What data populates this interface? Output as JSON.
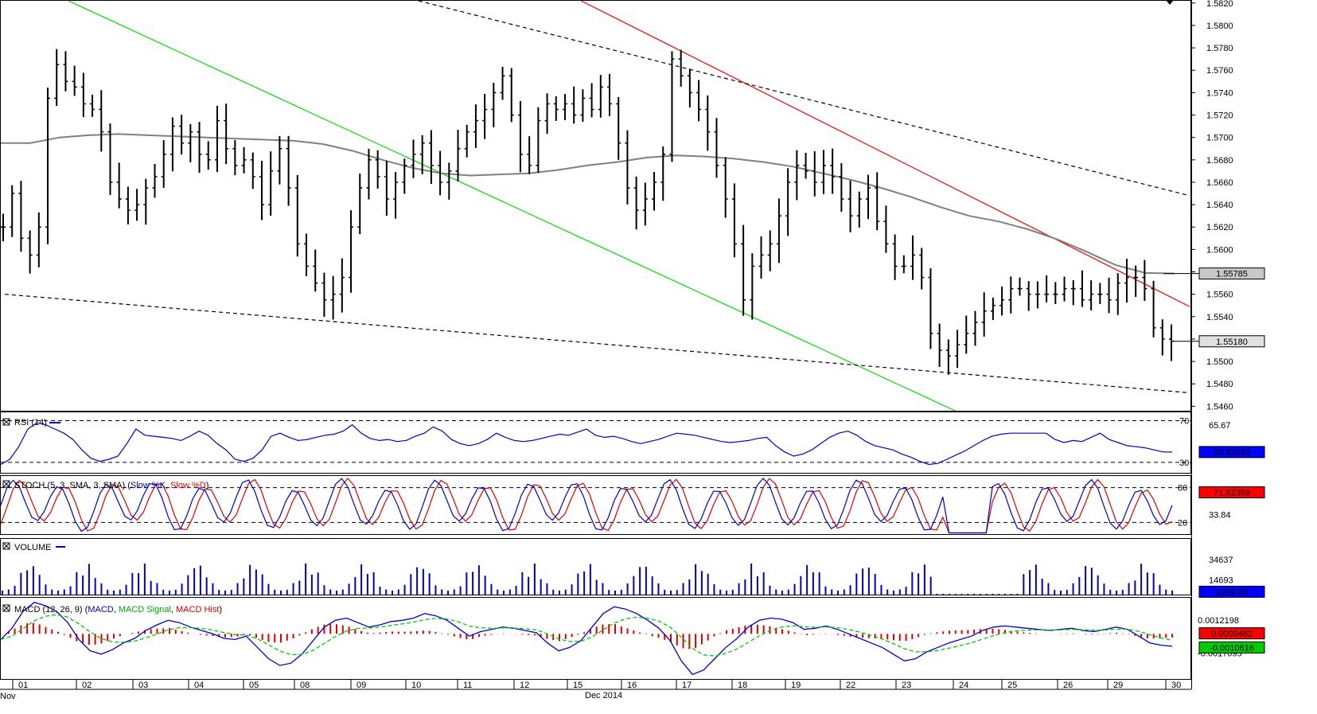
{
  "chart_data": {
    "type": "ohlc",
    "x_dates": {
      "month_labels": [
        "Nov",
        "Dec 2014"
      ],
      "day_labels": [
        "01",
        "02",
        "03",
        "04",
        "05",
        "08",
        "09",
        "10",
        "11",
        "12",
        "15",
        "16",
        "17",
        "18",
        "19",
        "22",
        "23",
        "24",
        "25",
        "26",
        "29",
        "30"
      ]
    },
    "main": {
      "y_ticks": [
        "1.5820",
        "1.5800",
        "1.5780",
        "1.5760",
        "1.5740",
        "1.5720",
        "1.5700",
        "1.5680",
        "1.5660",
        "1.5640",
        "1.5620",
        "1.5600",
        "1.5580",
        "1.5560",
        "1.5540",
        "1.5520",
        "1.5500",
        "1.5480",
        "1.5460"
      ],
      "ylim": [
        1.5456,
        1.5822
      ],
      "ma_label": "1.55785",
      "last_label": "1.55180",
      "ma_value": 1.55785,
      "last_value": 1.5518,
      "close_path": [
        1.562,
        1.565,
        1.561,
        1.5595,
        1.562,
        1.5735,
        1.5765,
        1.575,
        1.5745,
        1.573,
        1.5725,
        1.5705,
        1.566,
        1.5645,
        1.5635,
        1.564,
        1.5655,
        1.5665,
        1.5685,
        1.571,
        1.5695,
        1.5705,
        1.5685,
        1.568,
        1.5715,
        1.569,
        1.5675,
        1.568,
        1.5665,
        1.564,
        1.567,
        1.569,
        1.5655,
        1.5605,
        1.5585,
        1.557,
        1.5555,
        1.556,
        1.5575,
        1.562,
        1.5655,
        1.568,
        1.5665,
        1.5645,
        1.566,
        1.5675,
        1.5685,
        1.5695,
        1.5675,
        1.566,
        1.567,
        1.569,
        1.5705,
        1.5715,
        1.5725,
        1.574,
        1.5755,
        1.572,
        1.5685,
        1.5675,
        1.5715,
        1.573,
        1.5725,
        1.573,
        1.572,
        1.5735,
        1.5725,
        1.5745,
        1.573,
        1.5695,
        1.5655,
        1.5635,
        1.5645,
        1.566,
        1.5685,
        1.577,
        1.5755,
        1.574,
        1.5725,
        1.5705,
        1.5675,
        1.5645,
        1.5605,
        1.5555,
        1.5585,
        1.5595,
        1.5605,
        1.563,
        1.566,
        1.5675,
        1.567,
        1.566,
        1.5675,
        1.5665,
        1.5645,
        1.563,
        1.5645,
        1.5655,
        1.5625,
        1.5605,
        1.5585,
        1.5585,
        1.5595,
        1.5575,
        1.5525,
        1.551,
        1.5505,
        1.5515,
        1.5525,
        1.5535,
        1.5545,
        1.555,
        1.5555,
        1.5565,
        1.5565,
        1.556,
        1.556,
        1.556,
        1.556,
        1.5565,
        1.5565,
        1.5555,
        1.556,
        1.556,
        1.5555,
        1.557,
        1.5575,
        1.5575,
        1.5565,
        1.553,
        1.552,
        1.5518
      ],
      "ma_path": [
        1.5695,
        1.5695,
        1.57,
        1.5702,
        1.5703,
        1.5702,
        1.5701,
        1.57,
        1.5699,
        1.5698,
        1.5697,
        1.5694,
        1.5688,
        1.568,
        1.5673,
        1.5668,
        1.5666,
        1.5667,
        1.5668,
        1.5671,
        1.5675,
        1.5678,
        1.5682,
        1.5684,
        1.5683,
        1.5681,
        1.5678,
        1.5674,
        1.5668,
        1.5662,
        1.5655,
        1.5647,
        1.5638,
        1.563,
        1.5625,
        1.5618,
        1.5609,
        1.5598,
        1.5586,
        1.5579,
        1.55785
      ]
    },
    "trendlines": [
      {
        "color": "#00dd00",
        "from": [
          1,
          1.5822
        ],
        "to": [
          17.2,
          1.5456
        ]
      },
      {
        "color": "#ff0000",
        "from": [
          10.4,
          1.5822
        ],
        "to": [
          21.95,
          1.5549
        ]
      },
      {
        "color": "#000000",
        "dashed": true,
        "from": [
          7.4,
          1.5822
        ],
        "to": [
          21.95,
          1.5648
        ]
      },
      {
        "color": "#000000",
        "dashed": true,
        "from": [
          0,
          1.556
        ],
        "to": [
          21.95,
          1.5472
        ]
      }
    ],
    "rsi": {
      "label_name": "RSI (14)",
      "levels": [
        "70",
        "30"
      ],
      "level_values": [
        70,
        30
      ],
      "y_ticks": [
        "65.67"
      ],
      "current": "39.92039",
      "ylim": [
        20,
        78
      ],
      "values": [
        28,
        33,
        45,
        62,
        68,
        66,
        62,
        58,
        52,
        42,
        34,
        31,
        33,
        36,
        48,
        62,
        56,
        55,
        54,
        53,
        51,
        55,
        60,
        56,
        48,
        42,
        33,
        31,
        34,
        42,
        55,
        58,
        54,
        51,
        52,
        54,
        56,
        57,
        60,
        66,
        58,
        53,
        51,
        52,
        50,
        51,
        55,
        58,
        64,
        60,
        52,
        48,
        46,
        48,
        52,
        58,
        54,
        51,
        50,
        51,
        53,
        55,
        57,
        56,
        59,
        62,
        56,
        54,
        55,
        53,
        50,
        48,
        50,
        52,
        55,
        58,
        57,
        56,
        54,
        52,
        50,
        49,
        50,
        51,
        53,
        54,
        46,
        40,
        36,
        38,
        42,
        48,
        54,
        58,
        60,
        56,
        50,
        46,
        44,
        42,
        38,
        35,
        31,
        28,
        29,
        33,
        37,
        41,
        46,
        51,
        55,
        57,
        58,
        58,
        58,
        58,
        58,
        52,
        49,
        51,
        50,
        54,
        58,
        52,
        49,
        46,
        45,
        44,
        42,
        40,
        39.92
      ]
    },
    "stoch": {
      "label_name": "STOCH (5, 3, SMA, 3, SMA)",
      "series_names": [
        "Slow %K",
        "Slow %D"
      ],
      "levels": [
        "80",
        "20"
      ],
      "level_values": [
        80,
        20
      ],
      "y_ticks": [
        "33.84"
      ],
      "current": "71.92359",
      "ylim": [
        0,
        100
      ]
    },
    "volume": {
      "label_name": "VOLUME",
      "y_ticks": [
        "34637",
        "14693"
      ],
      "current": "1269.36",
      "ylim": [
        0,
        55000
      ]
    },
    "macd": {
      "label_name": "MACD (12, 26, 9)",
      "series_names": [
        "MACD",
        "MACD Signal",
        "MACD Hist"
      ],
      "y_ticks": [
        "0.0012198",
        "-0.0017095"
      ],
      "current_hist": "0.0000482",
      "current_signal": "-0.0010616",
      "ylim": [
        -0.004,
        0.0032
      ],
      "values": [
        -0.0005,
        0.0005,
        0.002,
        0.0028,
        0.0025,
        0.002,
        0.001,
        -0.0005,
        -0.0015,
        -0.0018,
        -0.0014,
        -0.0008,
        -0.0004,
        0.0003,
        0.0008,
        0.0012,
        0.001,
        0.0006,
        0.0003,
        0.0,
        -0.0004,
        -0.0005,
        -0.0002,
        -0.0012,
        -0.0022,
        -0.0028,
        -0.0026,
        -0.0018,
        -0.0006,
        0.0006,
        0.0012,
        0.0014,
        0.001,
        0.0006,
        0.0008,
        0.0011,
        0.0012,
        0.0014,
        0.0018,
        0.0016,
        0.0012,
        0.0005,
        -0.0002,
        0.0002,
        0.0004,
        0.0006,
        0.0005,
        0.0003,
        0.0001,
        -0.0008,
        -0.0015,
        -0.0012,
        -0.0006,
        0.0006,
        0.0018,
        0.0024,
        0.0022,
        0.0018,
        0.0012,
        0.0005,
        -0.0006,
        -0.0024,
        -0.0036,
        -0.0032,
        -0.0022,
        -0.0012,
        -0.0004,
        0.0006,
        0.0012,
        0.0014,
        0.0013,
        0.001,
        0.0004,
        0.0005,
        0.0007,
        0.0004,
        0.0,
        -0.0004,
        -0.0008,
        -0.0012,
        -0.0018,
        -0.0024,
        -0.0022,
        -0.0016,
        -0.0012,
        -0.0008,
        -0.0005,
        -0.0002,
        0.0003,
        0.0006,
        0.0007,
        0.0006,
        0.0005,
        0.0004,
        0.0003,
        0.0004,
        0.0005,
        0.0003,
        0.0002,
        0.0004,
        0.0006,
        0.0004,
        -0.0002,
        -0.0008,
        -0.001,
        -0.0011
      ]
    }
  }
}
